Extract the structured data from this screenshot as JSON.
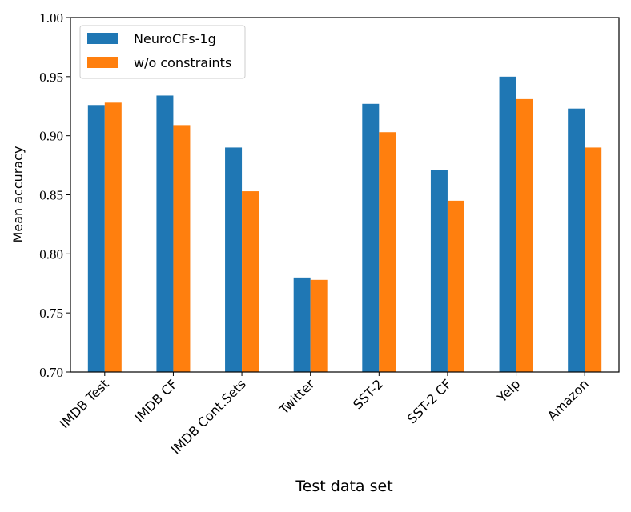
{
  "chart_data": {
    "type": "bar",
    "x_label": "Test data set",
    "y_label": "Mean accuracy",
    "categories": [
      "IMDB Test",
      "IMDB CF",
      "IMDB Cont.Sets",
      "Twitter",
      "SST-2",
      "SST-2 CF",
      "Yelp",
      "Amazon"
    ],
    "series": [
      {
        "name": "NeuroCFs-1g",
        "color": "#1f77b4",
        "values": [
          0.926,
          0.934,
          0.89,
          0.78,
          0.927,
          0.871,
          0.95,
          0.923
        ]
      },
      {
        "name": "w/o constraints",
        "color": "#ff7f0e",
        "values": [
          0.928,
          0.909,
          0.853,
          0.778,
          0.903,
          0.845,
          0.931,
          0.89
        ]
      }
    ],
    "ylim": [
      0.7,
      1.0
    ],
    "yticks": [
      {
        "value": 0.7,
        "label": "0.70"
      },
      {
        "value": 0.75,
        "label": "0.75"
      },
      {
        "value": 0.8,
        "label": "0.80"
      },
      {
        "value": 0.85,
        "label": "0.85"
      },
      {
        "value": 0.9,
        "label": "0.90"
      },
      {
        "value": 0.95,
        "label": "0.95"
      },
      {
        "value": 1.0,
        "label": "1.00"
      }
    ],
    "legend": "upper left",
    "grid": false
  }
}
